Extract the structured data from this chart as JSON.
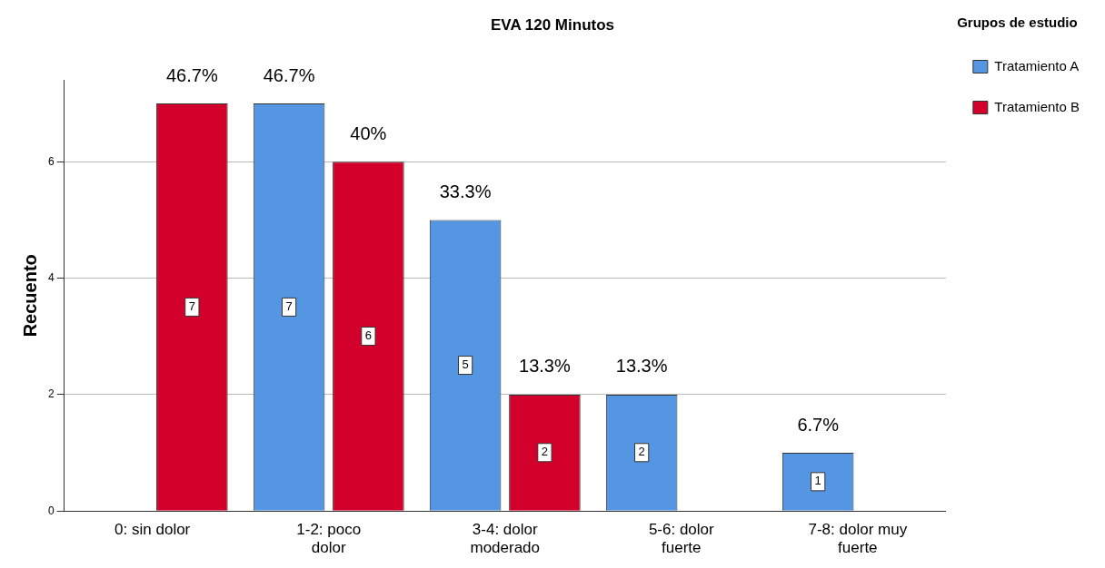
{
  "chart_data": {
    "type": "bar",
    "title": "EVA 120 Minutos",
    "ylabel": "Recuento",
    "legend_title": "Grupos de estudio",
    "categories": [
      "0: sin dolor",
      "1-2: poco dolor",
      "3-4: dolor moderado",
      "5-6: dolor fuerte",
      "7-8: dolor muy fuerte"
    ],
    "series": [
      {
        "name": "Tratamiento A",
        "color": "#5596e3",
        "values": [
          null,
          7,
          5,
          2,
          1
        ]
      },
      {
        "name": "Tratamiento B",
        "color": "#d2002b",
        "values": [
          7,
          6,
          2,
          null,
          null
        ]
      }
    ],
    "annotations": [
      "46.7%",
      "46.7%",
      "40%",
      "33.3%",
      "13.3%",
      "13.3%",
      "6.7%"
    ],
    "ylim": [
      0,
      7.4
    ],
    "yticks": [
      0,
      2,
      4,
      6
    ],
    "grid": "y",
    "legend": "top right",
    "data_labels": true
  }
}
